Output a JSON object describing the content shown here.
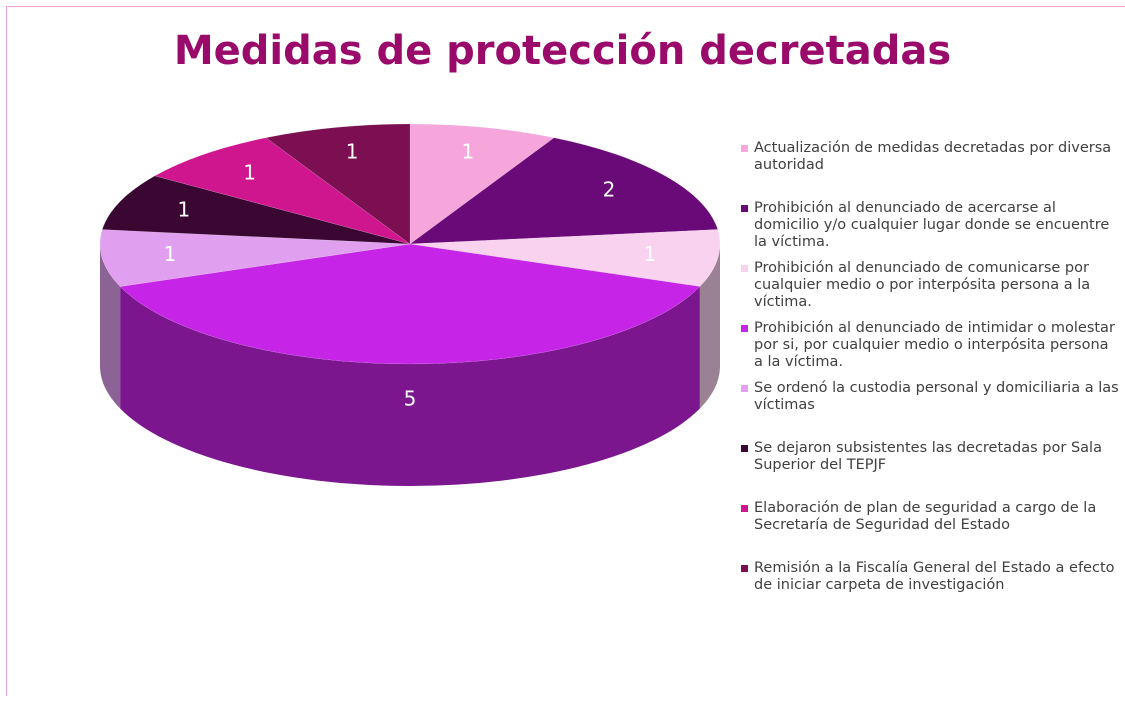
{
  "chart_data": {
    "type": "pie",
    "title": "Medidas de protección decretadas",
    "categories": [
      "Actualización de medidas decretadas por diversa autoridad",
      "Prohibición al denunciado de acercarse al domicilio y/o cualquier lugar donde se encuentre la víctima.",
      "Prohibición al denunciado de comunicarse por cualquier medio o por interpósita persona a la víctima.",
      "Prohibición al denunciado de intimidar o molestar por si, por cualquier medio o interpósita persona a la víctima.",
      "Se ordenó la custodia personal y domiciliaria a las víctimas",
      "Se dejaron subsistentes las decretadas por Sala Superior del TEPJF",
      "Elaboración de plan de seguridad a cargo de la Secretaría de Seguridad del Estado",
      "Remisión a la Fiscalía General del Estado a efecto de iniciar carpeta de investigación"
    ],
    "values": [
      1,
      2,
      1,
      5,
      1,
      1,
      1,
      1
    ],
    "colors": [
      "#f6a6db",
      "#6a0a78",
      "#f9d2ef",
      "#c624e6",
      "#e0a0ef",
      "#3a0632",
      "#d0168f",
      "#7b0f52"
    ],
    "legend": "right"
  }
}
